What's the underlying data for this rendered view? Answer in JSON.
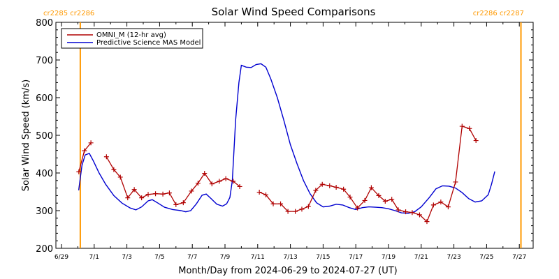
{
  "chart_data": {
    "type": "line",
    "title": "Solar Wind Speed Comparisons",
    "xlabel": "Month/Day from 2024-06-29 to 2024-07-27 (UT)",
    "ylabel": "Solar Wind Speed (km/s)",
    "xlim": [
      0,
      28.6
    ],
    "ylim": [
      200,
      800
    ],
    "x_ticks": [
      {
        "x": 0,
        "label": "6/29"
      },
      {
        "x": 2,
        "label": "7/1"
      },
      {
        "x": 4,
        "label": "7/3"
      },
      {
        "x": 6,
        "label": "7/5"
      },
      {
        "x": 8,
        "label": "7/7"
      },
      {
        "x": 10,
        "label": "7/9"
      },
      {
        "x": 12,
        "label": "7/11"
      },
      {
        "x": 14,
        "label": "7/13"
      },
      {
        "x": 16,
        "label": "7/15"
      },
      {
        "x": 18,
        "label": "7/17"
      },
      {
        "x": 20,
        "label": "7/19"
      },
      {
        "x": 22,
        "label": "7/21"
      },
      {
        "x": 24,
        "label": "7/23"
      },
      {
        "x": 26,
        "label": "7/25"
      },
      {
        "x": 28,
        "label": "7/27"
      }
    ],
    "y_ticks": [
      200,
      300,
      400,
      500,
      600,
      700,
      800
    ],
    "legend_position": "top-left",
    "carrington_markers": [
      {
        "x": 1.15,
        "label": "cr2285 cr2286",
        "label_side": "left",
        "color": "#ff9900"
      },
      {
        "x": 28.1,
        "label": "cr2286 cr2287",
        "label_side": "right",
        "color": "#ff9900"
      }
    ],
    "series": [
      {
        "name": "OMNI_M (12-hr avg)",
        "color": "#b00000",
        "markers": true,
        "segments": [
          [
            [
              1.06,
              403
            ],
            [
              1.4,
              459
            ],
            [
              1.8,
              480
            ]
          ],
          [
            [
              2.75,
              443
            ],
            [
              3.2,
              409
            ],
            [
              3.6,
              389
            ],
            [
              4.05,
              334
            ],
            [
              4.45,
              356
            ],
            [
              4.9,
              334
            ],
            [
              5.3,
              343
            ],
            [
              5.75,
              345
            ],
            [
              6.2,
              344
            ],
            [
              6.6,
              347
            ],
            [
              7.0,
              316
            ],
            [
              7.45,
              321
            ],
            [
              7.95,
              352
            ],
            [
              8.35,
              373
            ],
            [
              8.75,
              399
            ],
            [
              9.2,
              371
            ],
            [
              9.65,
              378
            ],
            [
              10.05,
              385
            ],
            [
              10.5,
              378
            ],
            [
              10.9,
              364
            ]
          ],
          [
            [
              12.1,
              349
            ],
            [
              12.5,
              342
            ],
            [
              12.95,
              318
            ],
            [
              13.4,
              318
            ],
            [
              13.85,
              298
            ],
            [
              14.3,
              298
            ],
            [
              14.7,
              304
            ],
            [
              15.1,
              311
            ],
            [
              15.55,
              354
            ],
            [
              15.95,
              370
            ],
            [
              16.4,
              366
            ],
            [
              16.8,
              362
            ],
            [
              17.25,
              357
            ],
            [
              17.65,
              336
            ],
            [
              18.1,
              307
            ],
            [
              18.55,
              327
            ],
            [
              18.95,
              361
            ],
            [
              19.4,
              340
            ],
            [
              19.8,
              325
            ],
            [
              20.2,
              330
            ],
            [
              20.6,
              302
            ],
            [
              21.05,
              297
            ],
            [
              21.45,
              295
            ],
            [
              21.9,
              289
            ],
            [
              22.35,
              271
            ],
            [
              22.75,
              315
            ],
            [
              23.2,
              323
            ],
            [
              23.65,
              310
            ],
            [
              24.1,
              376
            ],
            [
              24.5,
              524
            ],
            [
              24.95,
              518
            ],
            [
              25.35,
              486
            ]
          ]
        ]
      },
      {
        "name": "Predictive Science MAS Model",
        "color": "#0000d0",
        "markers": false,
        "points": [
          [
            1.05,
            354
          ],
          [
            1.25,
            420
          ],
          [
            1.45,
            448
          ],
          [
            1.7,
            452
          ],
          [
            1.95,
            432
          ],
          [
            2.3,
            400
          ],
          [
            2.7,
            370
          ],
          [
            3.2,
            340
          ],
          [
            3.7,
            320
          ],
          [
            4.2,
            307
          ],
          [
            4.55,
            302
          ],
          [
            4.9,
            310
          ],
          [
            5.3,
            326
          ],
          [
            5.55,
            329
          ],
          [
            5.9,
            320
          ],
          [
            6.3,
            309
          ],
          [
            6.8,
            303
          ],
          [
            7.3,
            300
          ],
          [
            7.6,
            297
          ],
          [
            7.9,
            300
          ],
          [
            8.25,
            318
          ],
          [
            8.6,
            341
          ],
          [
            8.85,
            344
          ],
          [
            9.15,
            332
          ],
          [
            9.5,
            317
          ],
          [
            9.85,
            312
          ],
          [
            10.1,
            318
          ],
          [
            10.3,
            335
          ],
          [
            10.45,
            380
          ],
          [
            10.65,
            540
          ],
          [
            10.85,
            640
          ],
          [
            11.0,
            686
          ],
          [
            11.3,
            681
          ],
          [
            11.6,
            680
          ],
          [
            11.9,
            688
          ],
          [
            12.2,
            690
          ],
          [
            12.5,
            681
          ],
          [
            12.8,
            650
          ],
          [
            13.2,
            600
          ],
          [
            13.6,
            540
          ],
          [
            14.0,
            475
          ],
          [
            14.4,
            425
          ],
          [
            14.8,
            380
          ],
          [
            15.2,
            345
          ],
          [
            15.6,
            321
          ],
          [
            16.0,
            310
          ],
          [
            16.4,
            312
          ],
          [
            16.8,
            317
          ],
          [
            17.2,
            315
          ],
          [
            17.6,
            308
          ],
          [
            18.0,
            303
          ],
          [
            18.4,
            308
          ],
          [
            18.8,
            310
          ],
          [
            19.2,
            309
          ],
          [
            19.6,
            308
          ],
          [
            20.0,
            305
          ],
          [
            20.4,
            300
          ],
          [
            20.8,
            294
          ],
          [
            21.2,
            293
          ],
          [
            21.6,
            297
          ],
          [
            22.0,
            310
          ],
          [
            22.5,
            335
          ],
          [
            22.9,
            358
          ],
          [
            23.3,
            366
          ],
          [
            23.7,
            365
          ],
          [
            24.1,
            360
          ],
          [
            24.5,
            348
          ],
          [
            24.9,
            332
          ],
          [
            25.3,
            323
          ],
          [
            25.7,
            326
          ],
          [
            26.1,
            342
          ],
          [
            26.3,
            370
          ],
          [
            26.5,
            404
          ]
        ]
      }
    ]
  }
}
